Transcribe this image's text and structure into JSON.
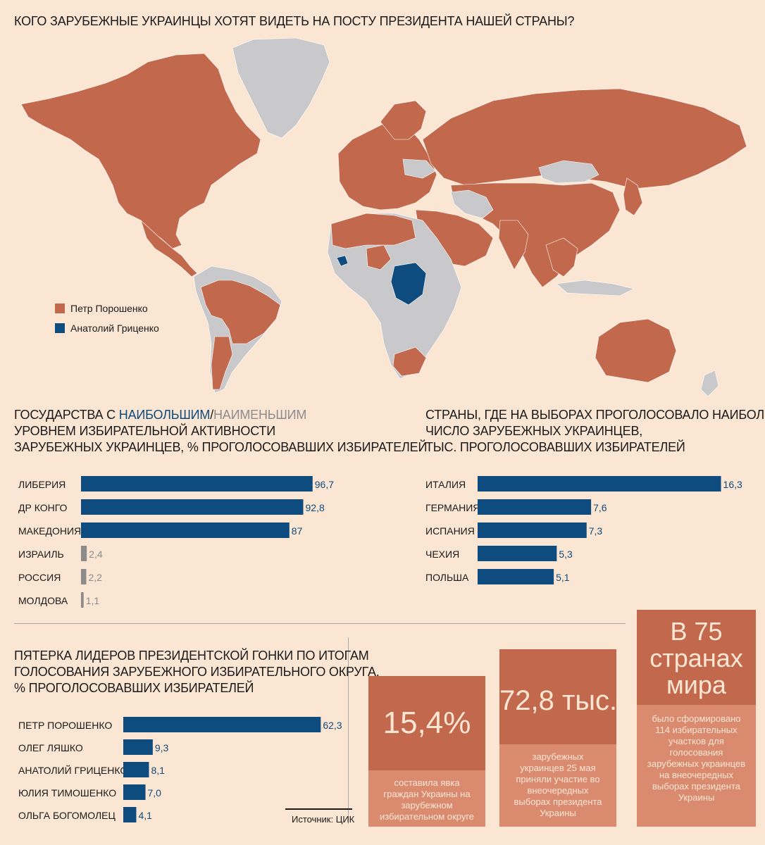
{
  "title": "КОГО ЗАРУБЕЖНЫЕ УКРАИНЦЫ ХОТЯТ ВИДЕТЬ НА ПОСТУ ПРЕЗИДЕНТА НАШЕЙ СТРАНЫ?",
  "colors": {
    "poroshenko": "#c2694d",
    "gritsenko": "#0e4b7e",
    "gray": "#c9c9cb",
    "bar_blue": "#0e4b7e",
    "bar_gray": "#8c8c8c",
    "card_top": "#c2694d",
    "card_bottom": "#d98a6f",
    "background": "#fbe6d4"
  },
  "legend": {
    "poroshenko": "Петр Порошенко",
    "gritsenko": "Анатолий Гриценко"
  },
  "activity": {
    "title_prefix": "ГОСУДАРСТВА С ",
    "title_high": "НАИБОЛЬШИМ",
    "title_slash": "/",
    "title_low": "НАИМЕНЬШИМ",
    "title_line2": "УРОВНЕМ ИЗБИРАТЕЛЬНОЙ АКТИВНОСТИ",
    "title_line3": "ЗАРУБЕЖНЫХ УКРАИНЦЕВ, % ПРОГОЛОСОВАВШИХ ИЗБИРАТЕЛЕЙ"
  },
  "countries": {
    "title_line1": "СТРАНЫ, ГДЕ НА ВЫБОРАХ ПРОГОЛОСОВАЛО НАИБОЛЬШЕЕ",
    "title_line2": "ЧИСЛО ЗАРУБЕЖНЫХ УКРАИНЦЕВ,",
    "title_line3": "ТЫС. ПРОГОЛОСОВАВШИХ ИЗБИРАТЕЛЕЙ"
  },
  "leaders": {
    "title_line1": "ПЯТЕРКА ЛИДЕРОВ ПРЕЗИДЕНТСКОЙ ГОНКИ ПО ИТОГАМ",
    "title_line2": "ГОЛОСОВАНИЯ ЗАРУБЕЖНОГО ИЗБИРАТЕЛЬНОГО ОКРУГА,",
    "title_line3": "% ПРОГОЛОСОВАВШИХ ИЗБИРАТЕЛЕЙ"
  },
  "source": "Источник: ЦИК",
  "cards": {
    "turnout_big": "15,4%",
    "turnout_text": "составила явка граждан Украины на зарубежном избирательном округе",
    "voters_big": "72,8 тыс.",
    "voters_text": "зарубежных украинцев 25 мая приняли участие во внеочередных выборах президента Украины",
    "countries_big_1": "В 75",
    "countries_big_2": "странах",
    "countries_big_3": "мира",
    "countries_text": "было сформировано 114 избирательных участков для голосования зарубежных украинцев на внеочередных выборах президента Украины"
  },
  "chart_data": [
    {
      "type": "bar",
      "orientation": "horizontal",
      "categories": [
        "ЛИБЕРИЯ",
        "ДР КОНГО",
        "МАКЕДОНИЯ",
        "ИЗРАИЛЬ",
        "РОССИЯ",
        "МОЛДОВА"
      ],
      "values": [
        96.7,
        92.8,
        87,
        2.4,
        2.2,
        1.1
      ],
      "value_labels": [
        "96,7",
        "92,8",
        "87",
        "2,4",
        "2,2",
        "1,1"
      ],
      "groups": [
        "high",
        "high",
        "high",
        "low",
        "low",
        "low"
      ]
    },
    {
      "type": "bar",
      "orientation": "horizontal",
      "categories": [
        "ИТАЛИЯ",
        "ГЕРМАНИЯ",
        "ИСПАНИЯ",
        "ЧЕХИЯ",
        "ПОЛЬША"
      ],
      "values": [
        16.3,
        7.6,
        7.3,
        5.3,
        5.1
      ],
      "value_labels": [
        "16,3",
        "7,6",
        "7,3",
        "5,3",
        "5,1"
      ]
    },
    {
      "type": "bar",
      "orientation": "horizontal",
      "categories": [
        "ПЕТР ПОРОШЕНКО",
        "ОЛЕГ ЛЯШКО",
        "АНАТОЛИЙ ГРИЦЕНКО",
        "ЮЛИЯ ТИМОШЕНКО",
        "ОЛЬГА БОГОМОЛЕЦ"
      ],
      "values": [
        62.3,
        9.3,
        8.1,
        7.0,
        4.1
      ],
      "value_labels": [
        "62,3",
        "9,3",
        "8,1",
        "7,0",
        "4,1"
      ]
    }
  ]
}
